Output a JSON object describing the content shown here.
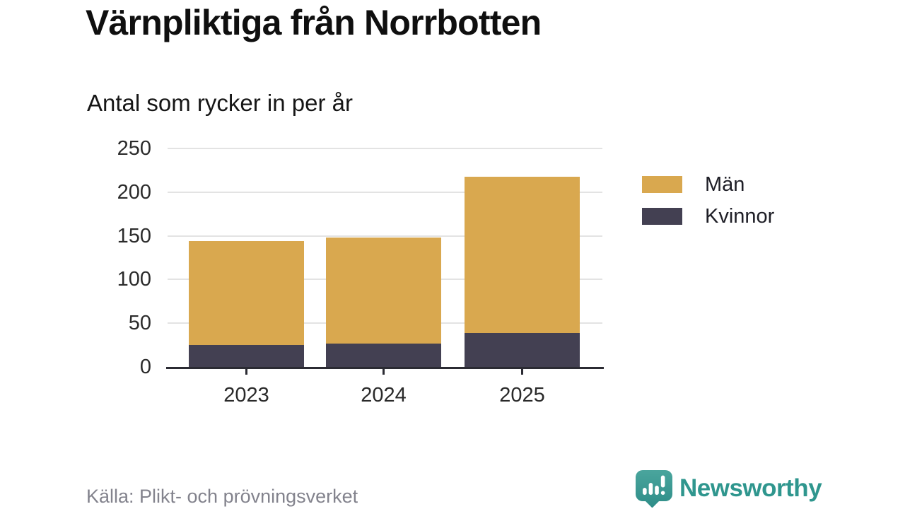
{
  "brand": {
    "name": "Newsworthy",
    "color": "#2f968e"
  },
  "chart_data": {
    "type": "bar",
    "stacked": true,
    "title": "Värnpliktiga från Norrbotten",
    "subtitle": "Antal som rycker in per år",
    "source": "Källa: Plikt- och prövningsverket",
    "categories": [
      "2023",
      "2024",
      "2025"
    ],
    "series": [
      {
        "name": "Män",
        "color": "#d9a84f",
        "values": [
          119,
          121,
          179
        ]
      },
      {
        "name": "Kvinnor",
        "color": "#434052",
        "values": [
          25,
          27,
          39
        ]
      }
    ],
    "stack_bottom_to_top": [
      "Kvinnor",
      "Män"
    ],
    "totals": [
      144,
      148,
      218
    ],
    "ylim": [
      0,
      250
    ],
    "yticks": [
      0,
      50,
      100,
      150,
      200,
      250
    ],
    "grid": true,
    "legend_position": "right",
    "colors": {
      "grid": "#e3e3e3",
      "axis": "#2b2b33",
      "tick_label": "#2b2b2b"
    }
  }
}
